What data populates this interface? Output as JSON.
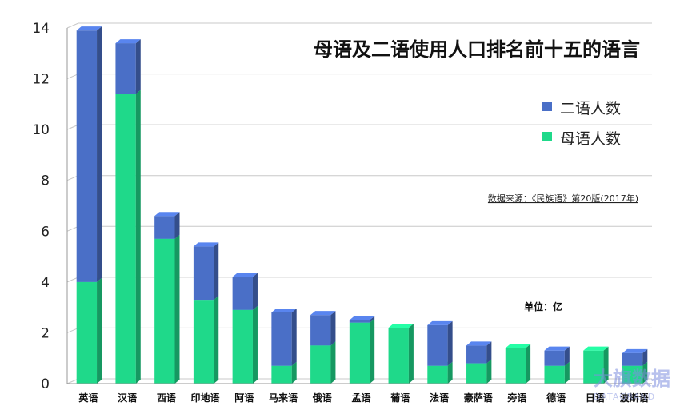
{
  "chart_data": {
    "type": "bar",
    "stacked": true,
    "title": "母语及二语使用人口排名前十五的语言",
    "categories": [
      "英语",
      "汉语",
      "西语",
      "印地语",
      "阿语",
      "马来语",
      "俄语",
      "孟语",
      "葡语",
      "法语",
      "豪萨语",
      "旁语",
      "德语",
      "日语",
      "波斯语"
    ],
    "series": [
      {
        "name": "母语人数",
        "color": "#1fd98a",
        "values": [
          4.0,
          11.4,
          5.7,
          3.3,
          2.9,
          0.7,
          1.5,
          2.4,
          2.2,
          0.7,
          0.8,
          1.4,
          0.7,
          1.3,
          0.7
        ]
      },
      {
        "name": "二语人数",
        "color": "#4a6fc7",
        "values": [
          9.9,
          2.0,
          0.9,
          2.1,
          1.3,
          2.1,
          1.2,
          0.1,
          0.0,
          1.6,
          0.7,
          0.0,
          0.6,
          0.0,
          0.5
        ]
      }
    ],
    "ylim": [
      0,
      14
    ],
    "yticks": [
      0,
      2,
      4,
      6,
      8,
      10,
      12,
      14
    ],
    "grid": true,
    "legend_position": "top-right",
    "legend": [
      {
        "label": "二语人数",
        "color": "#4a6fc7"
      },
      {
        "label": "母语人数",
        "color": "#1fd98a"
      }
    ],
    "source_note": "数据来源：《民族语》第20版(2017年)",
    "unit_note": "单位：亿"
  },
  "watermark": {
    "text": "大旗数据",
    "sub": "DATAGRAND"
  }
}
